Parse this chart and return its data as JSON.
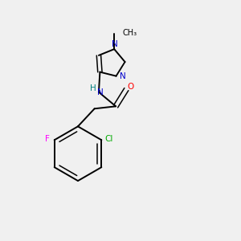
{
  "bg_color": "#f0f0f0",
  "bond_color": "#000000",
  "atom_colors": {
    "N": "#0000cc",
    "NH": "#008080",
    "O": "#ff0000",
    "Cl": "#00aa00",
    "F": "#ff00ff",
    "C": "#000000"
  },
  "lw": 1.4,
  "lw2": 1.1,
  "fs": 7.5
}
